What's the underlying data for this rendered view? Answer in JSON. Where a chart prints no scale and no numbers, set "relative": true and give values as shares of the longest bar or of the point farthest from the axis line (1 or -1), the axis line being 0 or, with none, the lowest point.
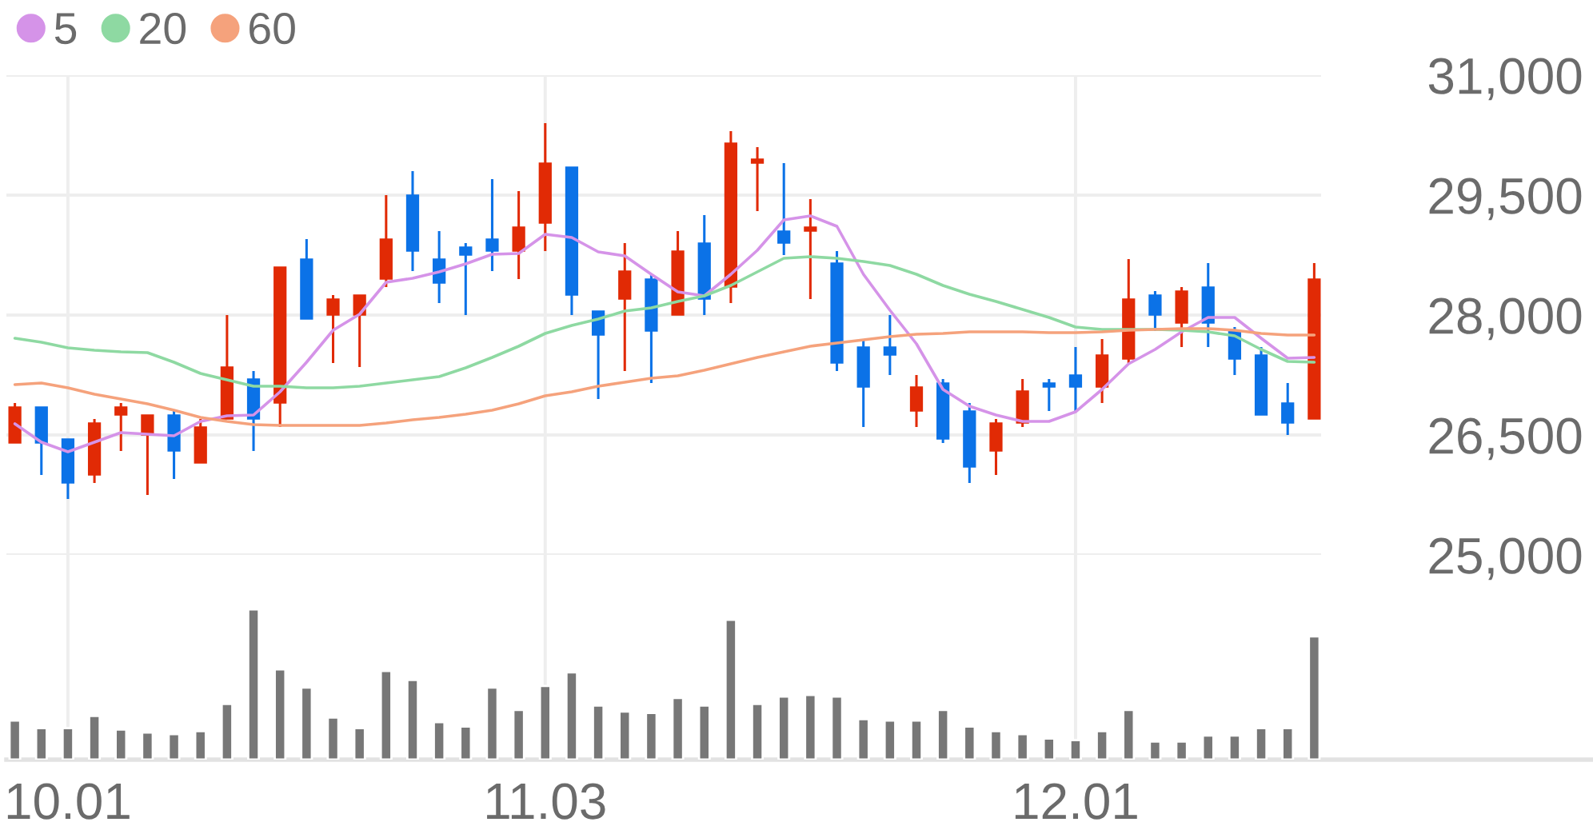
{
  "chart_data": [
    {
      "type": "candlestick",
      "categories": [
        null,
        null,
        "10.01",
        null,
        null,
        null,
        null,
        null,
        null,
        null,
        null,
        null,
        null,
        null,
        null,
        null,
        null,
        null,
        null,
        null,
        "11.03",
        null,
        null,
        null,
        null,
        null,
        null,
        null,
        null,
        null,
        null,
        null,
        null,
        null,
        null,
        null,
        null,
        null,
        null,
        null,
        "12.01",
        null,
        null,
        null,
        null,
        null,
        null,
        null,
        null,
        null
      ],
      "ohlc": [
        [
          26400,
          26900,
          26400,
          26850
        ],
        [
          26850,
          26850,
          26000,
          26400
        ],
        [
          26450,
          26450,
          25700,
          25900
        ],
        [
          26000,
          26700,
          25900,
          26650
        ],
        [
          26750,
          26900,
          26300,
          26850
        ],
        [
          26500,
          26750,
          25750,
          26750
        ],
        [
          26750,
          26800,
          25950,
          26300
        ],
        [
          26150,
          26700,
          26150,
          26600
        ],
        [
          26700,
          28000,
          26700,
          27350
        ],
        [
          27200,
          27300,
          26300,
          26700
        ],
        [
          26900,
          28600,
          26600,
          28600
        ],
        [
          28700,
          28950,
          27950,
          27950
        ],
        [
          28000,
          28250,
          27400,
          28200
        ],
        [
          28000,
          28250,
          27350,
          28250
        ],
        [
          28450,
          29500,
          28350,
          28950
        ],
        [
          29500,
          29800,
          28550,
          28800
        ],
        [
          28700,
          29050,
          28150,
          28400
        ],
        [
          28850,
          28900,
          28000,
          28750
        ],
        [
          28950,
          29700,
          28550,
          28800
        ],
        [
          28800,
          29550,
          28450,
          29100
        ],
        [
          29150,
          30400,
          28800,
          29900
        ],
        [
          29850,
          29850,
          28000,
          28250
        ],
        [
          28050,
          28050,
          26950,
          27750
        ],
        [
          28200,
          28900,
          27300,
          28550
        ],
        [
          28450,
          28500,
          27150,
          27800
        ],
        [
          28000,
          29050,
          28000,
          28800
        ],
        [
          28900,
          29250,
          28000,
          28200
        ],
        [
          28350,
          30300,
          28150,
          30150
        ],
        [
          29900,
          30100,
          29300,
          29950
        ],
        [
          29050,
          29900,
          28750,
          28900
        ],
        [
          29050,
          29450,
          28200,
          29100
        ],
        [
          28650,
          28800,
          27300,
          27400
        ],
        [
          27600,
          27700,
          26600,
          27100
        ],
        [
          27600,
          28000,
          27250,
          27500
        ],
        [
          26800,
          27250,
          26600,
          27100
        ],
        [
          27150,
          27200,
          26400,
          26450
        ],
        [
          26800,
          26900,
          25900,
          26100
        ],
        [
          26300,
          26700,
          26000,
          26650
        ],
        [
          26650,
          27200,
          26600,
          27050
        ],
        [
          27150,
          27200,
          26800,
          27100
        ],
        [
          27250,
          27600,
          26800,
          27100
        ],
        [
          27100,
          27700,
          26900,
          27500
        ],
        [
          27450,
          28700,
          27400,
          28200
        ],
        [
          28250,
          28300,
          27800,
          28000
        ],
        [
          27900,
          28350,
          27600,
          28300
        ],
        [
          28350,
          28650,
          27600,
          27900
        ],
        [
          27800,
          27850,
          27250,
          27450
        ],
        [
          27500,
          27600,
          26750,
          26750
        ],
        [
          26900,
          27150,
          26500,
          26650
        ],
        [
          26700,
          28650,
          26700,
          28450
        ]
      ],
      "colors": [
        "#e12a05",
        "#0b72e7",
        "#0b72e7",
        "#e12a05",
        "#e12a05",
        "#e12a05",
        "#0b72e7",
        "#e12a05",
        "#e12a05",
        "#0b72e7",
        "#e12a05",
        "#0b72e7",
        "#e12a05",
        "#e12a05",
        "#e12a05",
        "#0b72e7",
        "#0b72e7",
        "#0b72e7",
        "#0b72e7",
        "#e12a05",
        "#e12a05",
        "#0b72e7",
        "#0b72e7",
        "#e12a05",
        "#0b72e7",
        "#e12a05",
        "#0b72e7",
        "#e12a05",
        "#e12a05",
        "#0b72e7",
        "#e12a05",
        "#0b72e7",
        "#0b72e7",
        "#0b72e7",
        "#e12a05",
        "#0b72e7",
        "#0b72e7",
        "#e12a05",
        "#e12a05",
        "#0b72e7",
        "#0b72e7",
        "#e12a05",
        "#e12a05",
        "#0b72e7",
        "#e12a05",
        "#0b72e7",
        "#0b72e7",
        "#0b72e7",
        "#0b72e7",
        "#e12a05"
      ],
      "series": [
        {
          "name": "5",
          "type": "line",
          "color": "#d593e8",
          "values": [
            26640,
            26410,
            26290,
            26410,
            26530,
            26510,
            26490,
            26670,
            26740,
            26750,
            27040,
            27410,
            27810,
            28010,
            28410,
            28460,
            28540,
            28640,
            28760,
            28770,
            29010,
            28970,
            28790,
            28740,
            28510,
            28290,
            28240,
            28510,
            28810,
            29190,
            29240,
            29110,
            28510,
            28060,
            27640,
            27070,
            26860,
            26750,
            26670,
            26670,
            26790,
            27070,
            27390,
            27570,
            27790,
            27970,
            27970,
            27710,
            27460,
            27470
          ]
        },
        {
          "name": "20",
          "type": "line",
          "color": "#8ed9a2",
          "values": [
            27710,
            27660,
            27590,
            27560,
            27540,
            27530,
            27410,
            27270,
            27190,
            27110,
            27110,
            27090,
            27090,
            27110,
            27150,
            27190,
            27230,
            27340,
            27470,
            27610,
            27770,
            27870,
            27950,
            28050,
            28090,
            28170,
            28240,
            28370,
            28540,
            28710,
            28730,
            28710,
            28670,
            28620,
            28510,
            28370,
            28260,
            28170,
            28070,
            27970,
            27850,
            27820,
            27820,
            27820,
            27810,
            27790,
            27740,
            27570,
            27420,
            27410
          ]
        },
        {
          "name": "60",
          "type": "line",
          "color": "#f5a27c",
          "values": [
            27130,
            27150,
            27090,
            27010,
            26950,
            26890,
            26810,
            26720,
            26670,
            26630,
            26620,
            26620,
            26620,
            26620,
            26650,
            26690,
            26720,
            26760,
            26810,
            26890,
            26990,
            27040,
            27110,
            27160,
            27210,
            27240,
            27310,
            27390,
            27470,
            27540,
            27610,
            27650,
            27690,
            27730,
            27760,
            27770,
            27790,
            27790,
            27790,
            27780,
            27780,
            27790,
            27810,
            27820,
            27830,
            27830,
            27810,
            27770,
            27750,
            27750
          ]
        }
      ],
      "ylim": [
        25000,
        31000
      ],
      "yticks": [
        {
          "value": 25000,
          "label": "25,000"
        },
        {
          "value": 26500,
          "label": "26,500"
        },
        {
          "value": 28000,
          "label": "28,000"
        },
        {
          "value": 29500,
          "label": "29,500"
        },
        {
          "value": 31000,
          "label": "31,000"
        }
      ],
      "grid": true,
      "legend": "top left",
      "tick_labels": "y"
    },
    {
      "type": "bar",
      "categories": [
        null,
        null,
        "10.01",
        null,
        null,
        null,
        null,
        null,
        null,
        null,
        null,
        null,
        null,
        null,
        null,
        null,
        null,
        null,
        null,
        null,
        "11.03",
        null,
        null,
        null,
        null,
        null,
        null,
        null,
        null,
        null,
        null,
        null,
        null,
        null,
        null,
        null,
        null,
        null,
        null,
        null,
        "12.01",
        null,
        null,
        null,
        null,
        null,
        null,
        null,
        null,
        null
      ],
      "values": [
        0.26,
        0.21,
        0.21,
        0.29,
        0.2,
        0.18,
        0.17,
        0.19,
        0.37,
        1,
        0.6,
        0.48,
        0.28,
        0.21,
        0.59,
        0.53,
        0.25,
        0.22,
        0.48,
        0.33,
        0.49,
        0.58,
        0.36,
        0.32,
        0.31,
        0.41,
        0.36,
        0.93,
        0.37,
        0.42,
        0.43,
        0.42,
        0.27,
        0.26,
        0.26,
        0.33,
        0.22,
        0.19,
        0.17,
        0.14,
        0.13,
        0.19,
        0.33,
        0.12,
        0.12,
        0.16,
        0.16,
        0.21,
        0.21,
        0.82
      ],
      "color": "#777777",
      "relative": true,
      "grid": "x",
      "tick_labels": "x"
    }
  ]
}
